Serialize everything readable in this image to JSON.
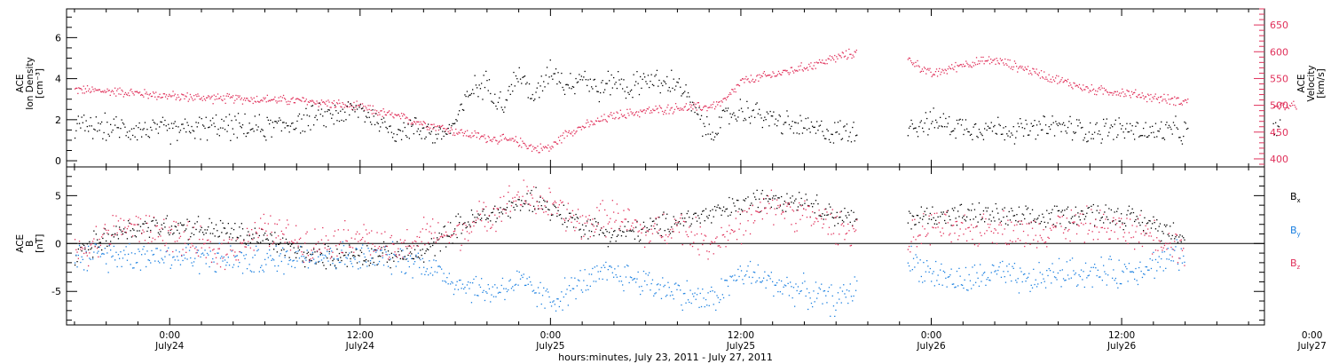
{
  "chart_data": [
    {
      "type": "scatter",
      "panel": "top",
      "ylabel_left": [
        "ACE",
        "Ion Density",
        "[cm⁻³]"
      ],
      "ylabel_right": [
        "ACE",
        "Velocity",
        "[km/s]"
      ],
      "ylim_left": [
        -0.3,
        7.4
      ],
      "ylim_right": [
        385,
        680
      ],
      "yticks_left": [
        "0",
        "2",
        "4",
        "6"
      ],
      "yticks_right": [
        "400",
        "450",
        "500",
        "550",
        "600",
        "650"
      ],
      "colors": {
        "density": "#000000",
        "velocity": "#e0305a"
      },
      "series": [
        {
          "name": "density",
          "axis": "left",
          "color": "#000000",
          "points": [
            [
              -6,
              1.7
            ],
            [
              -3,
              1.6
            ],
            [
              0,
              1.5
            ],
            [
              3,
              1.7
            ],
            [
              6,
              1.6
            ],
            [
              9,
              2.1
            ],
            [
              12,
              2.5
            ],
            [
              14,
              1.5
            ],
            [
              16,
              1.6
            ],
            [
              17,
              1.2
            ],
            [
              18,
              1.9
            ],
            [
              19,
              3.5
            ],
            [
              20,
              3.8
            ],
            [
              21,
              2.8
            ],
            [
              22,
              4.3
            ],
            [
              23,
              3.0
            ],
            [
              24,
              4.6
            ],
            [
              25,
              3.7
            ],
            [
              26,
              4.2
            ],
            [
              27,
              3.4
            ],
            [
              28,
              4.0
            ],
            [
              29,
              3.5
            ],
            [
              30,
              4.1
            ],
            [
              31,
              3.7
            ],
            [
              32,
              3.9
            ],
            [
              33,
              2.5
            ],
            [
              34,
              1.3
            ],
            [
              35,
              2.1
            ],
            [
              36,
              2.5
            ],
            [
              37,
              2.3
            ],
            [
              38,
              2.0
            ],
            [
              39,
              1.8
            ],
            [
              40,
              1.6
            ],
            [
              41,
              1.5
            ],
            [
              42,
              1.4
            ],
            [
              48,
              1.9
            ],
            [
              50,
              1.7
            ],
            [
              52,
              1.6
            ],
            [
              54,
              1.5
            ],
            [
              56,
              1.7
            ],
            [
              58,
              1.5
            ],
            [
              60,
              1.6
            ],
            [
              62,
              1.4
            ],
            [
              63,
              1.5
            ],
            [
              64,
              1.4
            ],
            [
              70,
              1.5
            ]
          ]
        },
        {
          "name": "velocity",
          "axis": "right",
          "color": "#e0305a",
          "points": [
            [
              -6,
              530
            ],
            [
              -3,
              526
            ],
            [
              0,
              518
            ],
            [
              3,
              514
            ],
            [
              6,
              512
            ],
            [
              9,
              508
            ],
            [
              12,
              497
            ],
            [
              14,
              482
            ],
            [
              16,
              467
            ],
            [
              18,
              452
            ],
            [
              20,
              440
            ],
            [
              22,
              433
            ],
            [
              23,
              420
            ],
            [
              24,
              422
            ],
            [
              25,
              450
            ],
            [
              28,
              482
            ],
            [
              30,
              490
            ],
            [
              32,
              496
            ],
            [
              34,
              498
            ],
            [
              35,
              510
            ],
            [
              36,
              545
            ],
            [
              38,
              558
            ],
            [
              40,
              572
            ],
            [
              42,
              590
            ],
            [
              44,
              605
            ],
            [
              46,
              598
            ],
            [
              48,
              558
            ],
            [
              50,
              578
            ],
            [
              52,
              585
            ],
            [
              54,
              568
            ],
            [
              56,
              548
            ],
            [
              58,
              530
            ],
            [
              60,
              525
            ],
            [
              62,
              515
            ],
            [
              64,
              508
            ],
            [
              70,
              500
            ],
            [
              71,
              498
            ]
          ]
        }
      ]
    },
    {
      "type": "scatter",
      "panel": "bottom",
      "ylabel": [
        "ACE",
        "B",
        "[nT]"
      ],
      "ylim": [
        -8.5,
        8
      ],
      "yticks": [
        "-5",
        "0",
        "5"
      ],
      "xlabel": "hours:minutes, July 23, 2011 - July 27, 2011",
      "xlim": [
        -6.5,
        69
      ],
      "xticks": [
        {
          "h": 0,
          "time": "0:00",
          "date": "July24"
        },
        {
          "h": 12,
          "time": "12:00",
          "date": "July24"
        },
        {
          "h": 24,
          "time": "0:00",
          "date": "July25"
        },
        {
          "h": 36,
          "time": "12:00",
          "date": "July25"
        },
        {
          "h": 48,
          "time": "0:00",
          "date": "July26"
        },
        {
          "h": 60,
          "time": "12:00",
          "date": "July26"
        },
        {
          "h": 72,
          "time": "0:00",
          "date": "July27"
        }
      ],
      "legend": {
        "placement": "right",
        "items": [
          {
            "base": "B",
            "sub": "x",
            "color": "#000000"
          },
          {
            "base": "B",
            "sub": "y",
            "color": "#1a7fe0"
          },
          {
            "base": "B",
            "sub": "z",
            "color": "#e0305a"
          }
        ]
      },
      "series": [
        {
          "name": "Bx",
          "color": "#000000",
          "points": [
            [
              -6,
              -1
            ],
            [
              -3,
              1.5
            ],
            [
              0,
              2
            ],
            [
              3,
              1.5
            ],
            [
              6,
              0.5
            ],
            [
              9,
              -1.5
            ],
            [
              12,
              -1
            ],
            [
              14,
              -1.2
            ],
            [
              16,
              -1
            ],
            [
              18,
              1.8
            ],
            [
              20,
              3
            ],
            [
              22,
              4
            ],
            [
              23,
              5
            ],
            [
              24,
              3.5
            ],
            [
              26,
              2
            ],
            [
              28,
              1
            ],
            [
              30,
              1.5
            ],
            [
              32,
              2.5
            ],
            [
              34,
              3
            ],
            [
              36,
              4
            ],
            [
              38,
              5
            ],
            [
              40,
              4.5
            ],
            [
              42,
              3
            ],
            [
              44,
              2
            ],
            [
              48,
              3
            ],
            [
              50,
              3
            ],
            [
              52,
              3
            ],
            [
              54,
              2.5
            ],
            [
              56,
              3
            ],
            [
              58,
              3.2
            ],
            [
              60,
              3
            ],
            [
              62,
              2
            ],
            [
              63,
              1.5
            ],
            [
              64,
              1
            ]
          ]
        },
        {
          "name": "By",
          "color": "#1a7fe0",
          "points": [
            [
              -6,
              -1.5
            ],
            [
              -3,
              -1
            ],
            [
              0,
              -1.2
            ],
            [
              3,
              -1.5
            ],
            [
              6,
              -1.8
            ],
            [
              9,
              -1
            ],
            [
              12,
              -1.5
            ],
            [
              14,
              -1.5
            ],
            [
              16,
              -2
            ],
            [
              18,
              -4
            ],
            [
              20,
              -5
            ],
            [
              22,
              -4
            ],
            [
              24,
              -6
            ],
            [
              26,
              -4
            ],
            [
              28,
              -3
            ],
            [
              30,
              -4
            ],
            [
              32,
              -5
            ],
            [
              34,
              -6
            ],
            [
              36,
              -3
            ],
            [
              38,
              -4
            ],
            [
              40,
              -5
            ],
            [
              42,
              -6
            ],
            [
              46,
              -1
            ],
            [
              48,
              -3
            ],
            [
              50,
              -4
            ],
            [
              52,
              -3
            ],
            [
              54,
              -4
            ],
            [
              56,
              -3
            ],
            [
              58,
              -3
            ],
            [
              60,
              -3
            ],
            [
              62,
              -2
            ],
            [
              64,
              -1
            ]
          ]
        },
        {
          "name": "Bz",
          "color": "#e0305a",
          "points": [
            [
              -6,
              -1
            ],
            [
              -3,
              2
            ],
            [
              0,
              1
            ],
            [
              3,
              -1
            ],
            [
              6,
              1.5
            ],
            [
              9,
              0
            ],
            [
              12,
              1
            ],
            [
              14,
              -1
            ],
            [
              16,
              1
            ],
            [
              18,
              1
            ],
            [
              20,
              3
            ],
            [
              22,
              5
            ],
            [
              24,
              4
            ],
            [
              26,
              2
            ],
            [
              28,
              3
            ],
            [
              30,
              1
            ],
            [
              32,
              2
            ],
            [
              34,
              0
            ],
            [
              36,
              2
            ],
            [
              38,
              4
            ],
            [
              40,
              3
            ],
            [
              42,
              2
            ],
            [
              46,
              -0.5
            ],
            [
              48,
              2
            ],
            [
              50,
              1
            ],
            [
              52,
              2
            ],
            [
              54,
              1
            ],
            [
              56,
              2
            ],
            [
              58,
              2
            ],
            [
              60,
              1.5
            ],
            [
              62,
              1
            ],
            [
              64,
              -0.5
            ]
          ]
        }
      ]
    }
  ]
}
